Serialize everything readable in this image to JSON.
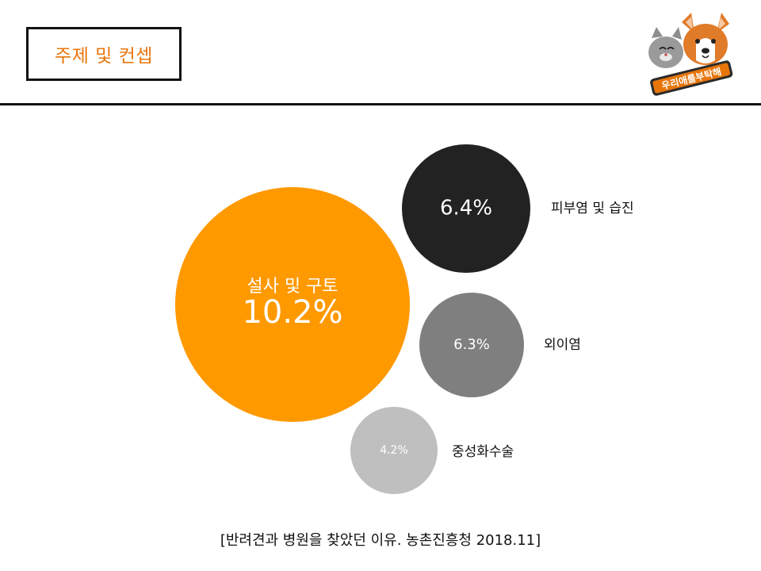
{
  "header": {
    "title": "주제 및 컨셉",
    "logo_text": "우리애를부탁해"
  },
  "chart_data": {
    "type": "bubble",
    "title": "",
    "series": [
      {
        "label": "설사 및 구토",
        "value": 10.2,
        "display": "10.2%",
        "color": "#FF9900"
      },
      {
        "label": "피부염 및 습진",
        "value": 6.4,
        "display": "6.4%",
        "color": "#222222"
      },
      {
        "label": "외이염",
        "value": 6.3,
        "display": "6.3%",
        "color": "#7F7F7F"
      },
      {
        "label": "중성화수술",
        "value": 4.2,
        "display": "4.2%",
        "color": "#BFBFBF"
      }
    ]
  },
  "footer": {
    "source": "[반려견과 병원을 찾았던 이유. 농촌진흥청 2018.11]"
  }
}
